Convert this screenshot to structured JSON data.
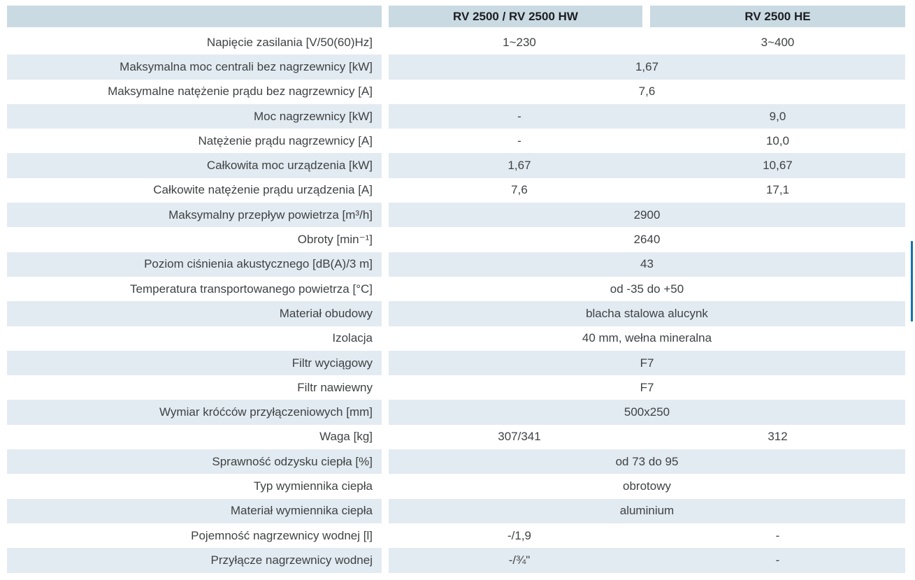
{
  "table": {
    "columns": [
      "",
      "RV 2500 / RV 2500 HW",
      "RV 2500 HE"
    ],
    "rows": [
      {
        "label": "Napięcie zasilania [V/50(60)Hz]",
        "values": [
          "1~230",
          "3~400"
        ]
      },
      {
        "label": "Maksymalna moc centrali bez nagrzewnicy [kW]",
        "values": [
          "1,67"
        ]
      },
      {
        "label": "Maksymalne natężenie prądu bez nagrzewnicy [A]",
        "values": [
          "7,6"
        ]
      },
      {
        "label": "Moc nagrzewnicy [kW]",
        "values": [
          "-",
          "9,0"
        ]
      },
      {
        "label": "Natężenie prądu nagrzewnicy [A]",
        "values": [
          "-",
          "10,0"
        ]
      },
      {
        "label": "Całkowita moc urządzenia [kW]",
        "values": [
          "1,67",
          "10,67"
        ]
      },
      {
        "label": "Całkowite natężenie prądu urządzenia [A]",
        "values": [
          "7,6",
          "17,1"
        ]
      },
      {
        "label": "Maksymalny przepływ powietrza [m³/h]",
        "values": [
          "2900"
        ]
      },
      {
        "label": "Obroty [min⁻¹]",
        "values": [
          "2640"
        ]
      },
      {
        "label": "Poziom ciśnienia akustycznego [dB(A)/3 m]",
        "values": [
          "43"
        ]
      },
      {
        "label": "Temperatura transportowanego powietrza [°C]",
        "values": [
          "od -35 do +50"
        ]
      },
      {
        "label": "Materiał obudowy",
        "values": [
          "blacha stalowa alucynk"
        ]
      },
      {
        "label": "Izolacja",
        "values": [
          "40 mm, wełna mineralna"
        ]
      },
      {
        "label": "Filtr wyciągowy",
        "values": [
          "F7"
        ]
      },
      {
        "label": "Filtr nawiewny",
        "values": [
          "F7"
        ]
      },
      {
        "label": "Wymiar króćców przyłączeniowych [mm]",
        "values": [
          "500x250"
        ]
      },
      {
        "label": "Waga [kg]",
        "values": [
          "307/341",
          "312"
        ]
      },
      {
        "label": "Sprawność odzysku ciepła [%]",
        "values": [
          "od 73 do 95"
        ]
      },
      {
        "label": "Typ wymiennika ciepła",
        "values": [
          "obrotowy"
        ]
      },
      {
        "label": "Materiał wymiennika ciepła",
        "values": [
          "aluminium"
        ]
      },
      {
        "label": "Pojemność nagrzewnicy wodnej [l]",
        "values": [
          "-/1,9",
          "-"
        ]
      },
      {
        "label": "Przyłącze nagrzewnicy wodnej",
        "values": [
          "-/¾\"",
          "-"
        ]
      }
    ]
  },
  "colors": {
    "header_bg": "#cadae3",
    "row_shade": "#e2ebf1",
    "accent_bar": "#1272b4",
    "text": "#3f4244",
    "header_text": "#1c1e21"
  }
}
